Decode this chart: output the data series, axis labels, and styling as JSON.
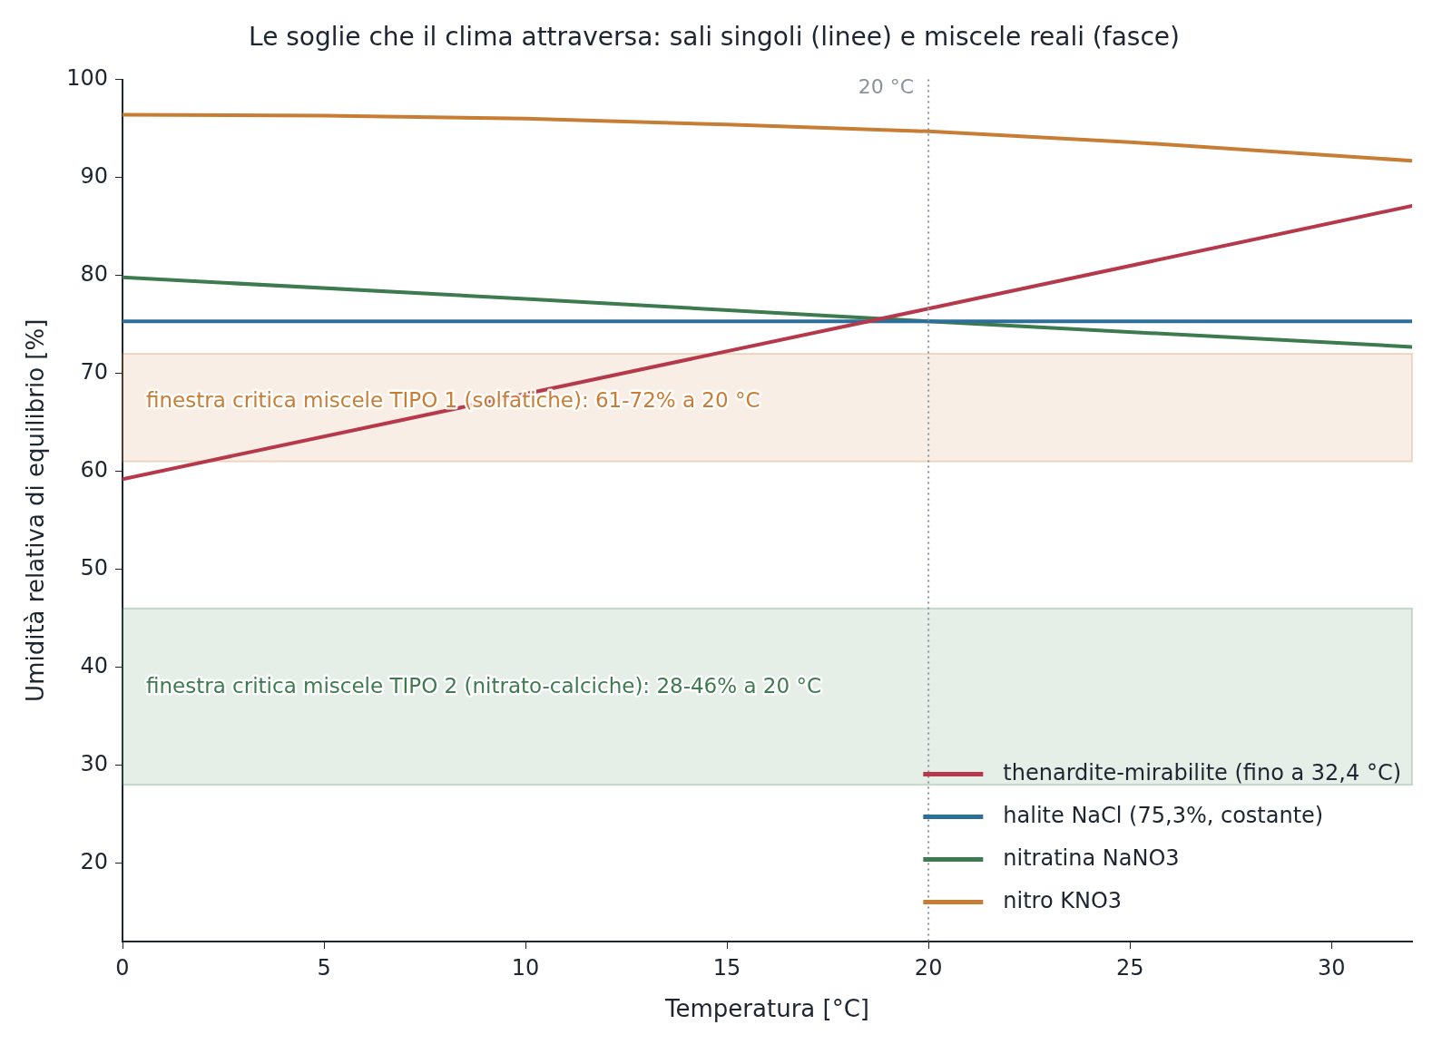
{
  "chart_data": {
    "type": "line",
    "title": "Le soglie che il clima attraversa: sali singoli (linee) e miscele reali (fasce)",
    "xlabel": "Temperatura [°C]",
    "ylabel": "Umidità relativa di equilibrio [%]",
    "xlim": [
      0,
      32
    ],
    "xticks": [
      0,
      5,
      10,
      15,
      20,
      25,
      30
    ],
    "ylim": [
      12,
      100
    ],
    "yticks": [
      20,
      30,
      40,
      50,
      60,
      70,
      80,
      90,
      100
    ],
    "grid": false,
    "legend": "bottom right",
    "marker": "none",
    "line_style": "solid",
    "series": [
      {
        "name": "thenardite-mirabilite (fino a 32,4 °C)",
        "color": "#b5394a",
        "x": [
          0,
          10,
          20,
          32
        ],
        "values": [
          59.2,
          67.9,
          76.6,
          87.1
        ]
      },
      {
        "name": "halite NaCl (75,3%, costante)",
        "color": "#2e6f9a",
        "x": [
          0,
          32
        ],
        "values": [
          75.3,
          75.3
        ]
      },
      {
        "name": "nitratina NaNO3",
        "color": "#3d7a4f",
        "x": [
          0,
          10,
          20,
          32
        ],
        "values": [
          79.8,
          77.6,
          75.3,
          72.7
        ]
      },
      {
        "name": "nitro KNO3",
        "color": "#c87d35",
        "x": [
          0,
          5,
          10,
          15,
          20,
          25,
          32
        ],
        "values": [
          96.4,
          96.3,
          96.0,
          95.4,
          94.7,
          93.6,
          91.7
        ]
      }
    ],
    "bands": [
      {
        "axis": "y",
        "from": 61,
        "to": 72,
        "label": "finestra critica miscele TIPO 1 (solfatiche): 61-72% a 20 °C",
        "color": "#c87d35"
      },
      {
        "axis": "y",
        "from": 28,
        "to": 46,
        "label": "finestra critica miscele TIPO 2 (nitrato-calciche): 28-46% a 20 °C",
        "color": "#3d7a4f"
      }
    ],
    "ref_lines": [
      {
        "axis": "x",
        "value": 20,
        "label": "20 °C",
        "color": "#8a939c",
        "line_style": "dotted"
      }
    ]
  }
}
